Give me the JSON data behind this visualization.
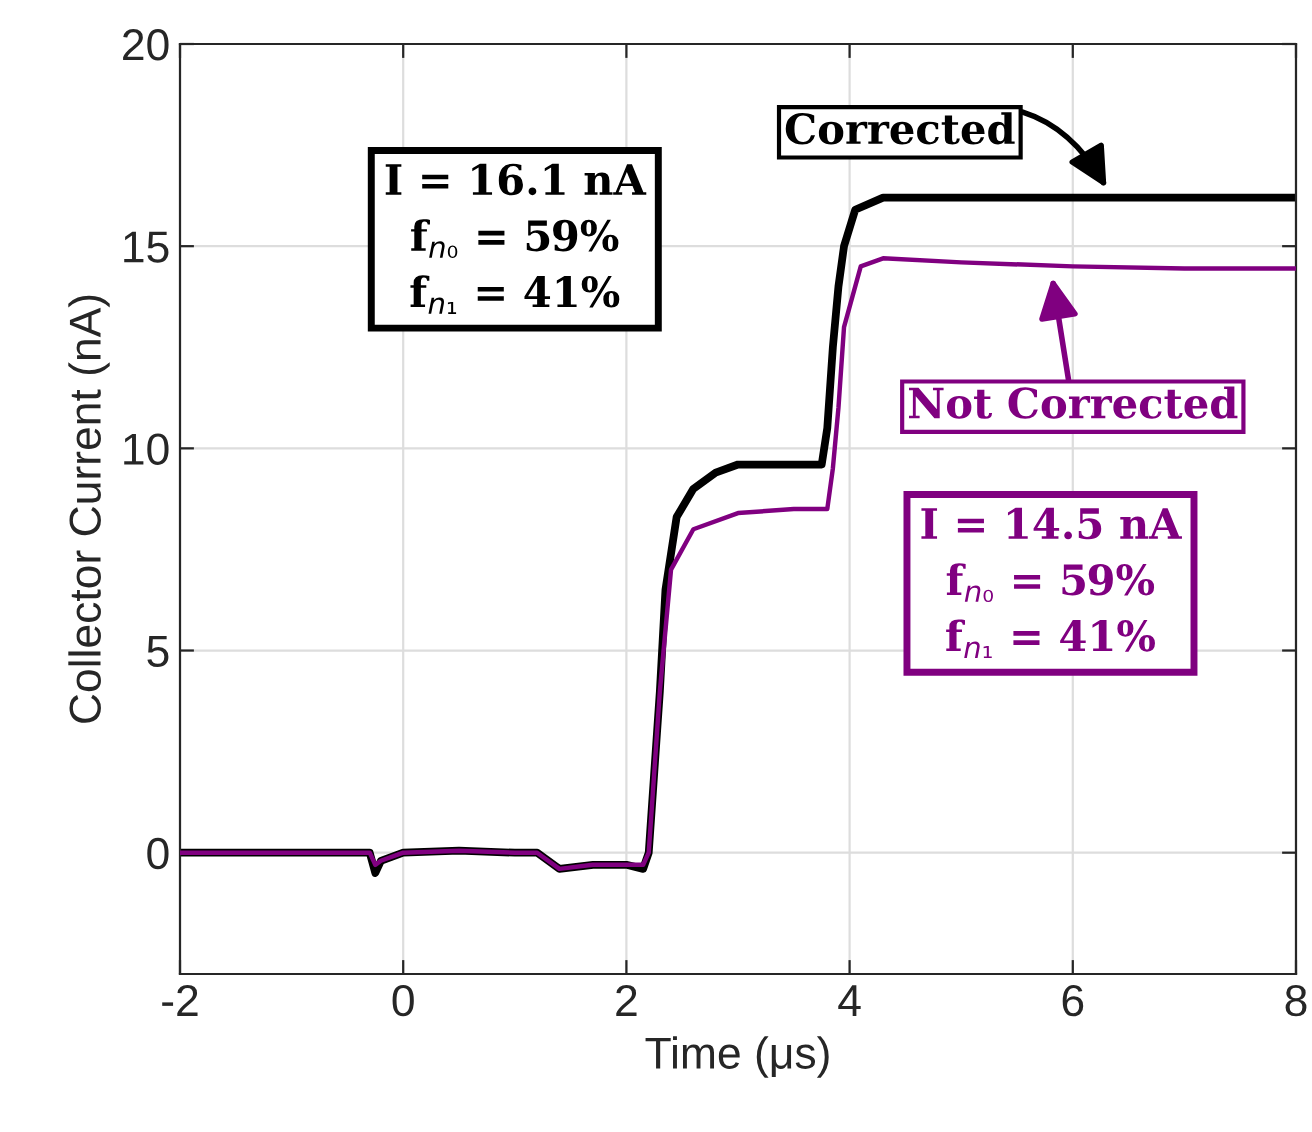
{
  "chart_data": {
    "type": "line",
    "xlabel": "Time (μs)",
    "ylabel": "Collector Current (nA)",
    "xlim": [
      -2,
      8
    ],
    "ylim": [
      -3,
      20
    ],
    "xticks": [
      -2,
      0,
      2,
      4,
      6,
      8
    ],
    "yticks": [
      0,
      5,
      10,
      15,
      20
    ],
    "grid": true,
    "line_style": "solid",
    "series": [
      {
        "color": "#000000",
        "x": [
          -2,
          -1.5,
          -1,
          -0.5,
          -0.3,
          -0.25,
          -0.2,
          0,
          0.5,
          1.0,
          1.2,
          1.4,
          1.7,
          2.0,
          2.15,
          2.2,
          2.25,
          2.3,
          2.35,
          2.45,
          2.6,
          2.8,
          3.0,
          3.3,
          3.5,
          3.75,
          3.8,
          3.85,
          3.9,
          3.95,
          4.05,
          4.3,
          5,
          6,
          7,
          8
        ],
        "values": [
          0,
          0,
          0,
          0,
          0,
          -0.5,
          -0.2,
          0,
          0.05,
          0,
          0,
          -0.4,
          -0.3,
          -0.3,
          -0.4,
          0,
          2,
          4,
          6.5,
          8.3,
          9.0,
          9.4,
          9.6,
          9.6,
          9.6,
          9.6,
          10.5,
          12.5,
          14,
          15,
          15.9,
          16.2,
          16.2,
          16.2,
          16.2,
          16.2
        ]
      },
      {
        "color": "#800080",
        "x": [
          -2,
          -1.5,
          -1,
          -0.5,
          -0.3,
          -0.25,
          -0.2,
          0,
          0.5,
          1.0,
          1.2,
          1.4,
          1.7,
          2.0,
          2.15,
          2.2,
          2.25,
          2.3,
          2.4,
          2.6,
          3.0,
          3.5,
          3.8,
          3.85,
          3.9,
          3.95,
          4.1,
          4.3,
          5,
          6,
          7,
          8
        ],
        "values": [
          0,
          0,
          0,
          0,
          0,
          -0.3,
          -0.2,
          0,
          0.05,
          0,
          0,
          -0.4,
          -0.3,
          -0.3,
          -0.3,
          0,
          2,
          4,
          7,
          8.0,
          8.4,
          8.5,
          8.5,
          9.5,
          11,
          13,
          14.5,
          14.7,
          14.6,
          14.5,
          14.45,
          14.45
        ]
      }
    ],
    "annotations": [
      {
        "text": "Corrected",
        "x": 6.35,
        "y": 16.2
      },
      {
        "text": "Not Corrected",
        "x": 5.8,
        "y": 14.5
      },
      "I = 16.1 nA\nf$_{n₀}$ = 59%\nf$_{n₁}$ = 41%",
      "I = 14.5 nA\nf$_{n₀}$ = 59%\nf$_{n₁}$ = 41%"
    ]
  }
}
